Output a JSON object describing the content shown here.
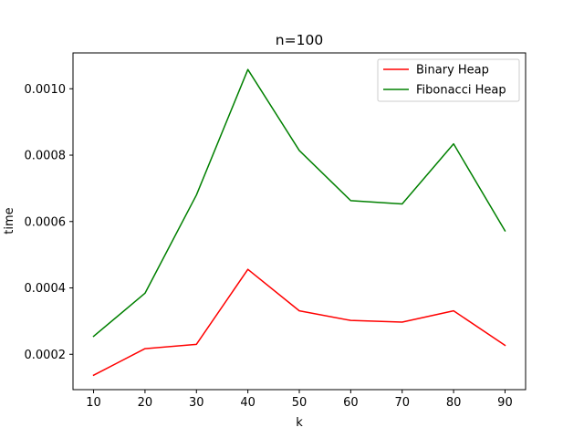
{
  "chart_data": {
    "type": "line",
    "title": "n=100",
    "xlabel": "k",
    "ylabel": "time",
    "x": [
      10,
      20,
      30,
      40,
      50,
      60,
      70,
      80,
      90
    ],
    "xticks": [
      "10",
      "20",
      "30",
      "40",
      "50",
      "60",
      "70",
      "80",
      "90"
    ],
    "yticks": [
      "0.0002",
      "0.0004",
      "0.0006",
      "0.0008",
      "0.0010"
    ],
    "ytick_values": [
      0.0002,
      0.0004,
      0.0006,
      0.0008,
      0.001
    ],
    "xlim": [
      6,
      94
    ],
    "ylim": [
      9.35e-05,
      0.001108
    ],
    "grid": false,
    "legend_position": "top-right",
    "series": [
      {
        "name": "Binary Heap",
        "color": "#ff0000",
        "values": [
          0.000137,
          0.000217,
          0.00023,
          0.000456,
          0.000331,
          0.000302,
          0.000297,
          0.000331,
          0.000227
        ]
      },
      {
        "name": "Fibonacci Heap",
        "color": "#008000",
        "values": [
          0.000254,
          0.000384,
          0.00068,
          0.001058,
          0.000814,
          0.000663,
          0.000653,
          0.000834,
          0.000572
        ]
      }
    ]
  }
}
